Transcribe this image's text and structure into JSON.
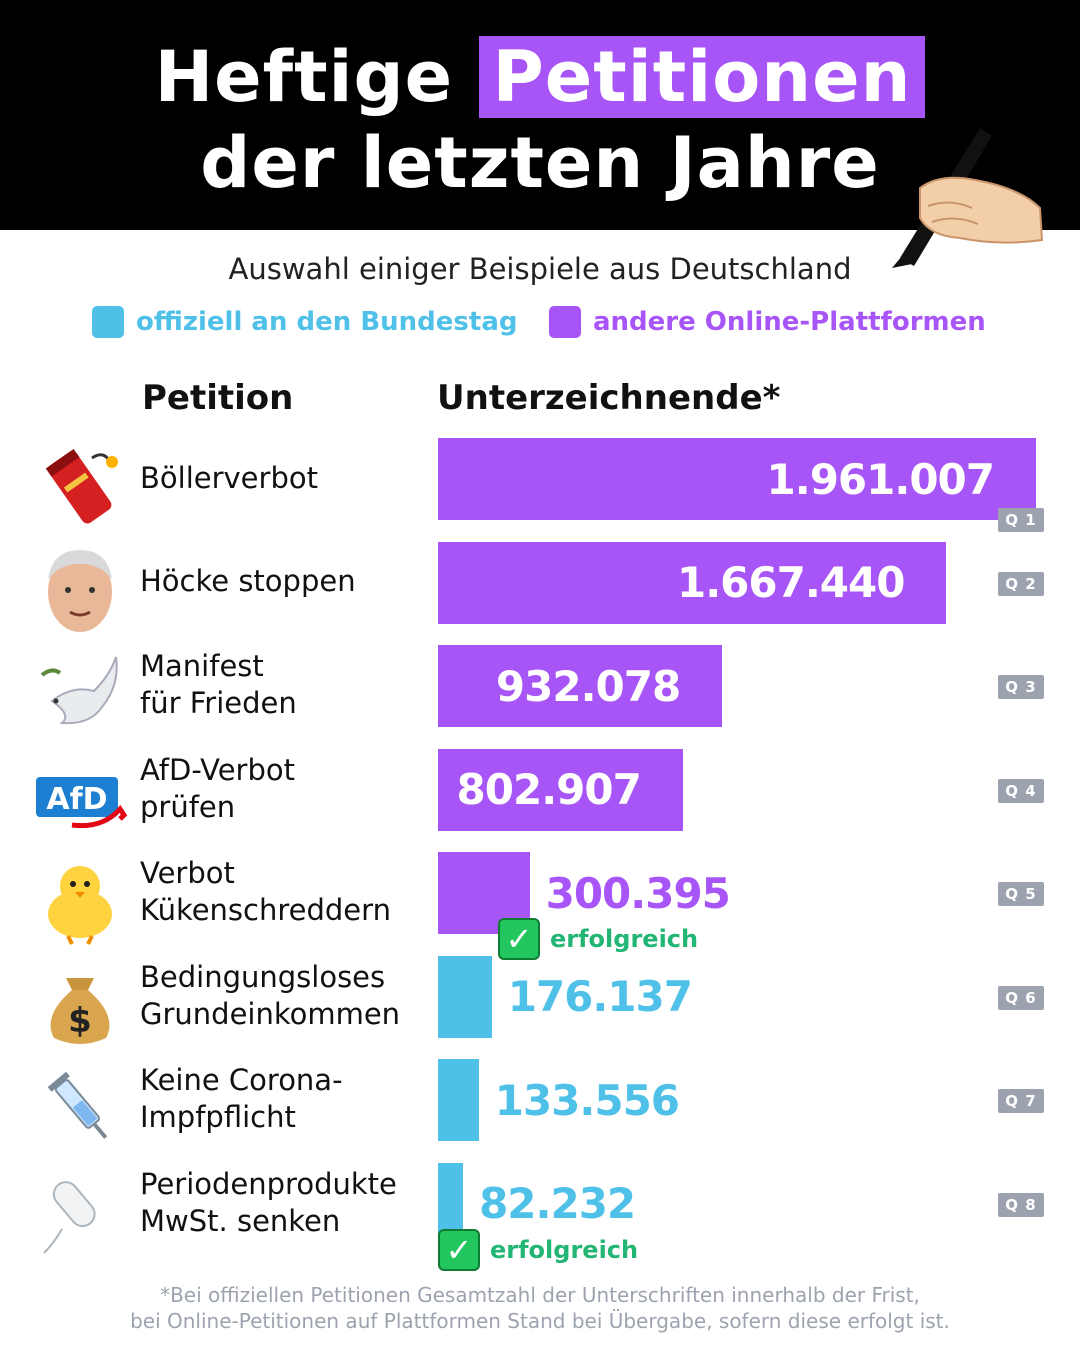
{
  "title": {
    "line1_plain": "Heftige",
    "line1_highlight": "Petitionen",
    "line2": "der letzten Jahre"
  },
  "subtitle": "Auswahl einiger Beispiele aus Deutschland",
  "legend": {
    "official": {
      "label": "offiziell an den Bundestag",
      "color": "#4fc1e9"
    },
    "online": {
      "label": "andere Online-Plattformen",
      "color": "#a855f7"
    }
  },
  "columns": {
    "petition": "Petition",
    "signers": "Unterzeichnende*"
  },
  "success_label": "erfolgreich",
  "chart_data": {
    "type": "bar",
    "orientation": "horizontal",
    "categories": [
      "Böllerverbot",
      "Höcke stoppen",
      "Manifest für Frieden",
      "AfD-Verbot prüfen",
      "Verbot Kükenschreddern",
      "Bedingungsloses Grundeinkommen",
      "Keine Corona-Impfpflicht",
      "Periodenprodukte MwSt. senken"
    ],
    "values": [
      1961007,
      1667440,
      932078,
      802907,
      300395,
      176137,
      133556,
      82232
    ],
    "value_labels": [
      "1.961.007",
      "1.667.440",
      "932.078",
      "802.907",
      "300.395",
      "176.137",
      "133.556",
      "82.232"
    ],
    "platform": [
      "online",
      "online",
      "online",
      "online",
      "online",
      "official",
      "official",
      "official"
    ],
    "successful": [
      false,
      false,
      false,
      false,
      true,
      false,
      false,
      true
    ],
    "sources": [
      "Q 1",
      "Q 2",
      "Q 3",
      "Q 4",
      "Q 5",
      "Q 6",
      "Q 7",
      "Q 8"
    ],
    "label_lines": [
      [
        "Böllerverbot"
      ],
      [
        "Höcke stoppen"
      ],
      [
        "Manifest",
        "für Frieden"
      ],
      [
        "AfD-Verbot",
        "prüfen"
      ],
      [
        "Verbot",
        "Kükenschreddern"
      ],
      [
        "Bedingungsloses",
        "Grundeinkommen"
      ],
      [
        "Keine Corona-",
        "Impfpflicht"
      ],
      [
        "Periodenprodukte",
        "MwSt. senken"
      ]
    ],
    "icons": [
      "firecracker-icon",
      "person-face-icon",
      "dove-icon",
      "afd-logo-icon",
      "chick-icon",
      "money-bag-icon",
      "syringe-icon",
      "tampon-icon"
    ],
    "xlim": [
      0,
      1961007
    ],
    "grid": false
  },
  "footnote": {
    "line1": "*Bei offiziellen Petitionen Gesamtzahl der Unterschriften innerhalb der Frist,",
    "line2": "bei Online-Petitionen auf Plattformen Stand bei Übergabe, sofern diese erfolgt ist."
  }
}
